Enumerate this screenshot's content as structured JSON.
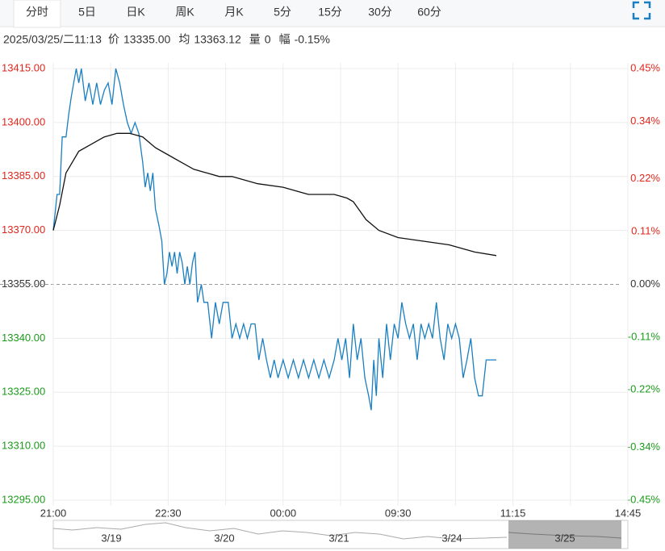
{
  "tabs": [
    "分时",
    "5日",
    "日K",
    "周K",
    "月K",
    "5分",
    "15分",
    "30分",
    "60分"
  ],
  "info": {
    "time": "2025/03/25/二11:13",
    "items": [
      {
        "label": "价",
        "value": "13335.00"
      },
      {
        "label": "均",
        "value": "13363.12"
      },
      {
        "label": "量",
        "value": "0"
      },
      {
        "label": "幅",
        "value": "-0.15%"
      }
    ]
  },
  "chart_data": {
    "type": "line",
    "ylim": [
      13295,
      13415
    ],
    "yticks": [
      {
        "value": 13415,
        "label": "13415.00"
      },
      {
        "value": 13400,
        "label": "13400.00"
      },
      {
        "value": 13385,
        "label": "13385.00"
      },
      {
        "value": 13370,
        "label": "13370.00"
      },
      {
        "value": 13355,
        "label": "13355.00"
      },
      {
        "value": 13340,
        "label": "13340.00"
      },
      {
        "value": 13325,
        "label": "13325.00"
      },
      {
        "value": 13310,
        "label": "13310.00"
      },
      {
        "value": 13295,
        "label": "13295.00"
      }
    ],
    "y2lim": [
      -0.45,
      0.45
    ],
    "y2ticks": [
      {
        "value": 0.45,
        "label": "0.45%"
      },
      {
        "value": 0.34,
        "label": "0.34%"
      },
      {
        "value": 0.22,
        "label": "0.22%"
      },
      {
        "value": 0.11,
        "label": "0.11%"
      },
      {
        "value": 0,
        "label": "0.00%"
      },
      {
        "value": -0.11,
        "label": "-0.11%"
      },
      {
        "value": -0.22,
        "label": "-0.22%"
      },
      {
        "value": -0.34,
        "label": "-0.34%"
      },
      {
        "value": -0.45,
        "label": "-0.45%"
      }
    ],
    "xlim": [
      0,
      450
    ],
    "xticks": [
      {
        "value": 0,
        "label": "21:00"
      },
      {
        "value": 45,
        "label": null
      },
      {
        "value": 90,
        "label": "22:30"
      },
      {
        "value": 135,
        "label": null
      },
      {
        "value": 180,
        "label": "00:00"
      },
      {
        "value": 225,
        "label": null
      },
      {
        "value": 270,
        "label": "09:30"
      },
      {
        "value": 315,
        "label": null
      },
      {
        "value": 360,
        "label": "11:15"
      },
      {
        "value": 405,
        "label": null
      },
      {
        "value": 450,
        "label": "14:45"
      }
    ],
    "reference_line": 13355,
    "grid": true,
    "series": [
      {
        "color": "#1a7fc1",
        "x": [
          0,
          3,
          5,
          7,
          10,
          12,
          14,
          16,
          18,
          20,
          22,
          25,
          28,
          31,
          34,
          37,
          40,
          43,
          46,
          49,
          52,
          55,
          58,
          61,
          64,
          67,
          70,
          72,
          74,
          76,
          78,
          80,
          83,
          85,
          87,
          89,
          91,
          93,
          95,
          97,
          99,
          101,
          103,
          105,
          107,
          109,
          111,
          113,
          116,
          118,
          121,
          124,
          127,
          130,
          133,
          137,
          140,
          143,
          146,
          149,
          152,
          155,
          158,
          161,
          164,
          167,
          170,
          173,
          176,
          180,
          184,
          188,
          192,
          196,
          200,
          204,
          208,
          212,
          216,
          220,
          223,
          226,
          229,
          232,
          235,
          238,
          241,
          244,
          247,
          249,
          251,
          253,
          255,
          258,
          261,
          264,
          267,
          270,
          273,
          276,
          279,
          282,
          285,
          288,
          291,
          294,
          297,
          300,
          303,
          306,
          309,
          312,
          315,
          318,
          321,
          324,
          327,
          330,
          333,
          336,
          339,
          342,
          347
        ],
        "values": [
          13370,
          13380,
          13380,
          13396,
          13396,
          13402,
          13407,
          13411,
          13415,
          13411,
          13415,
          13406,
          13411,
          13405,
          13411,
          13405,
          13409,
          13411,
          13405,
          13415,
          13411,
          13405,
          13400,
          13397,
          13400,
          13397,
          13389,
          13382,
          13386,
          13381,
          13386,
          13376,
          13371,
          13367,
          13355,
          13358,
          13364,
          13360,
          13364,
          13358,
          13364,
          13361,
          13355,
          13360,
          13355,
          13361,
          13364,
          13350,
          13355,
          13350,
          13350,
          13340,
          13350,
          13344,
          13350,
          13350,
          13340,
          13344,
          13340,
          13344,
          13340,
          13344,
          13344,
          13334,
          13340,
          13334,
          13329,
          13334,
          13329,
          13334,
          13329,
          13334,
          13329,
          13334,
          13329,
          13334,
          13329,
          13334,
          13329,
          13334,
          13340,
          13334,
          13340,
          13329,
          13344,
          13334,
          13340,
          13329,
          13324,
          13320,
          13334,
          13324,
          13340,
          13329,
          13344,
          13334,
          13344,
          13340,
          13350,
          13344,
          13340,
          13344,
          13334,
          13344,
          13340,
          13344,
          13340,
          13350,
          13340,
          13334,
          13344,
          13340,
          13344,
          13340,
          13329,
          13334,
          13340,
          13329,
          13324,
          13324,
          13334,
          13334,
          13334
        ]
      },
      {
        "color": "#111111",
        "x": [
          0,
          5,
          10,
          15,
          20,
          30,
          40,
          50,
          60,
          70,
          80,
          90,
          100,
          110,
          120,
          130,
          140,
          160,
          180,
          200,
          220,
          230,
          235,
          245,
          255,
          270,
          290,
          310,
          330,
          347
        ],
        "values": [
          13370,
          13377,
          13386,
          13389,
          13392,
          13394,
          13396,
          13397,
          13397,
          13396,
          13393,
          13391,
          13389,
          13387,
          13386,
          13385,
          13385,
          13383,
          13382,
          13380,
          13380,
          13379,
          13378,
          13373,
          13370,
          13368,
          13367,
          13366,
          13364,
          13363
        ]
      }
    ]
  },
  "navigator": {
    "labels": [
      "3/19",
      "3/20",
      "3/21",
      "3/24",
      "3/25"
    ]
  }
}
